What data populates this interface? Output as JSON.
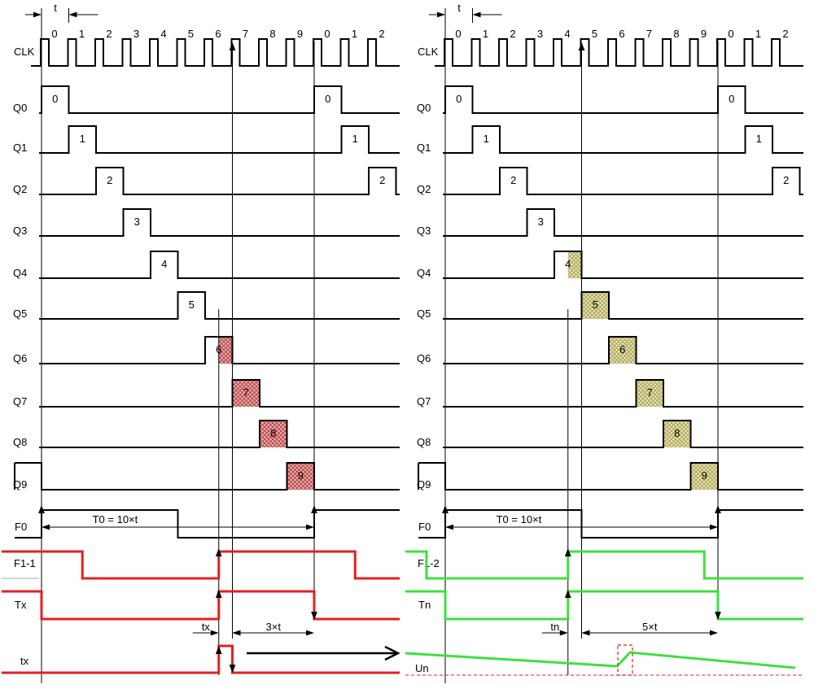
{
  "period_label": "t",
  "tick_numbers": [
    "0",
    "1",
    "2",
    "3",
    "4",
    "5",
    "6",
    "7",
    "8",
    "9",
    "0",
    "1",
    "2"
  ],
  "colors": {
    "line": "#000000",
    "red": "#e32020",
    "green": "#3ee03e",
    "hatch_red": "#c0392b",
    "hatch_yellow": "#c8c070"
  },
  "left": {
    "clk_label": "CLK",
    "q_labels": [
      "Q0",
      "Q1",
      "Q2",
      "Q3",
      "Q4",
      "Q5",
      "Q6",
      "Q7",
      "Q8",
      "Q9"
    ],
    "f0_label": "F0",
    "f0_span_label": "T0 = 10×t",
    "f1_label": "F1-1",
    "t_label": "Tx",
    "measure_label": "tx",
    "remaining_label": "3×t",
    "pulse_label": "tx"
  },
  "right": {
    "clk_label": "CLK",
    "q_labels": [
      "Q0",
      "Q1",
      "Q2",
      "Q3",
      "Q4",
      "Q5",
      "Q6",
      "Q7",
      "Q8",
      "Q9"
    ],
    "f0_label": "F0",
    "f0_span_label": "T0 = 10×t",
    "f1_label": "F1-2",
    "t_label": "Tn",
    "measure_label": "tn",
    "remaining_label": "5×t",
    "u_label": "Un"
  }
}
